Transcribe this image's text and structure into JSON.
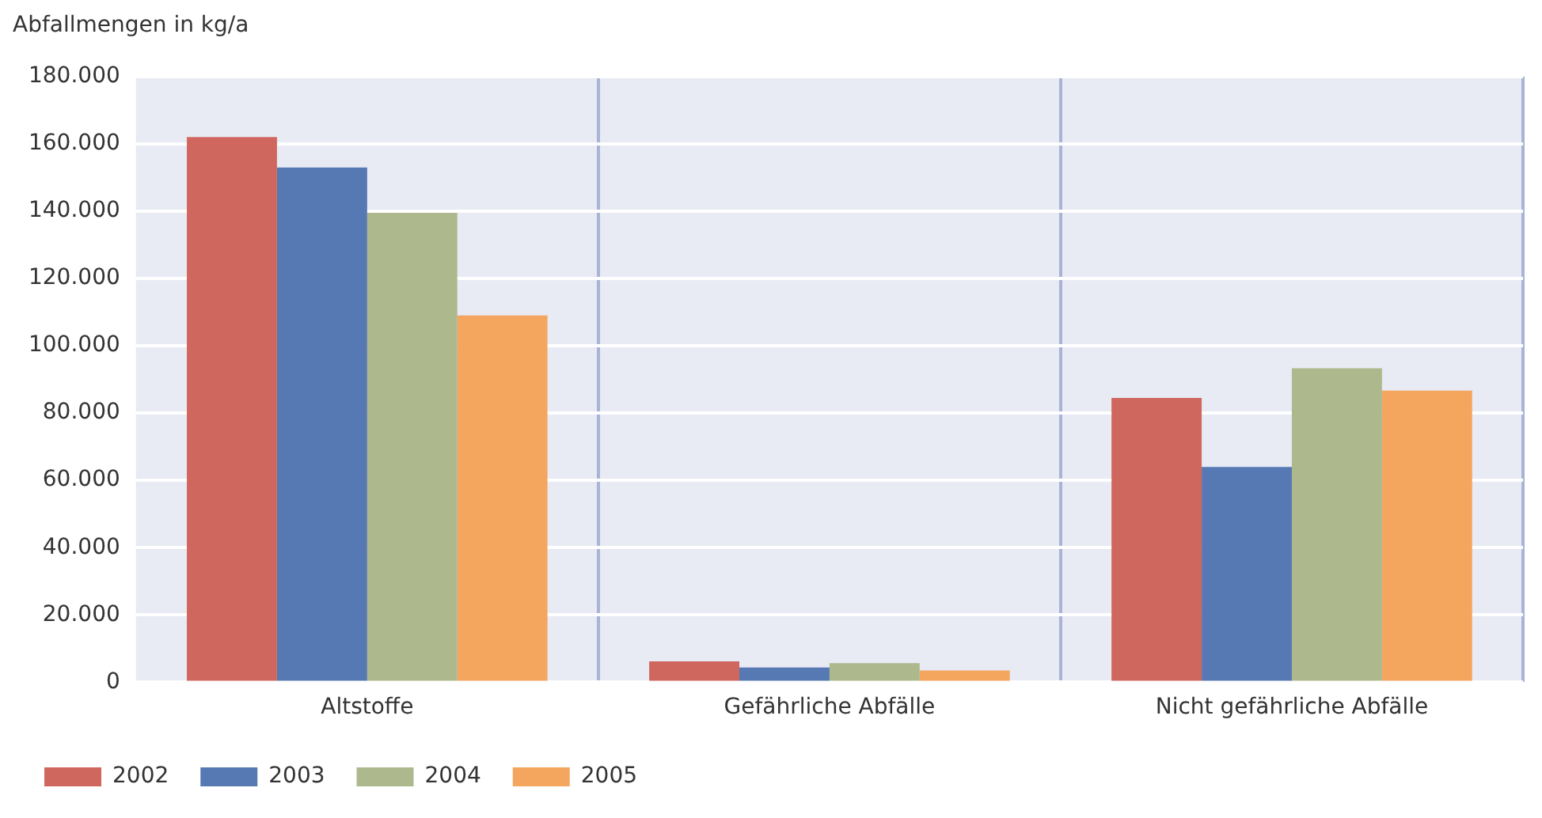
{
  "chart_data": {
    "type": "bar",
    "ylabel": "Abfallmengen in kg/a",
    "categories": [
      "Altstoffe",
      "Gefährliche Abfälle",
      "Nicht gefährliche Abfälle"
    ],
    "series": [
      {
        "name": "2002",
        "color": "#d0675e",
        "values": [
          162000,
          6200,
          84500
        ]
      },
      {
        "name": "2003",
        "color": "#5679b3",
        "values": [
          153000,
          4400,
          64000
        ]
      },
      {
        "name": "2004",
        "color": "#adb98d",
        "values": [
          139500,
          5700,
          93300
        ]
      },
      {
        "name": "2005",
        "color": "#f4a55e",
        "values": [
          109000,
          3500,
          86700
        ]
      }
    ],
    "ylim": [
      0,
      180000
    ],
    "yticks": [
      {
        "value": 0,
        "label": "0"
      },
      {
        "value": 20000,
        "label": "20.000"
      },
      {
        "value": 40000,
        "label": "40.000"
      },
      {
        "value": 60000,
        "label": "60.000"
      },
      {
        "value": 80000,
        "label": "80.000"
      },
      {
        "value": 100000,
        "label": "100.000"
      },
      {
        "value": 120000,
        "label": "120.000"
      },
      {
        "value": 140000,
        "label": "140.000"
      },
      {
        "value": 160000,
        "label": "160.000"
      },
      {
        "value": 180000,
        "label": "180.000"
      }
    ],
    "grid": true,
    "legend": "bottom left"
  }
}
